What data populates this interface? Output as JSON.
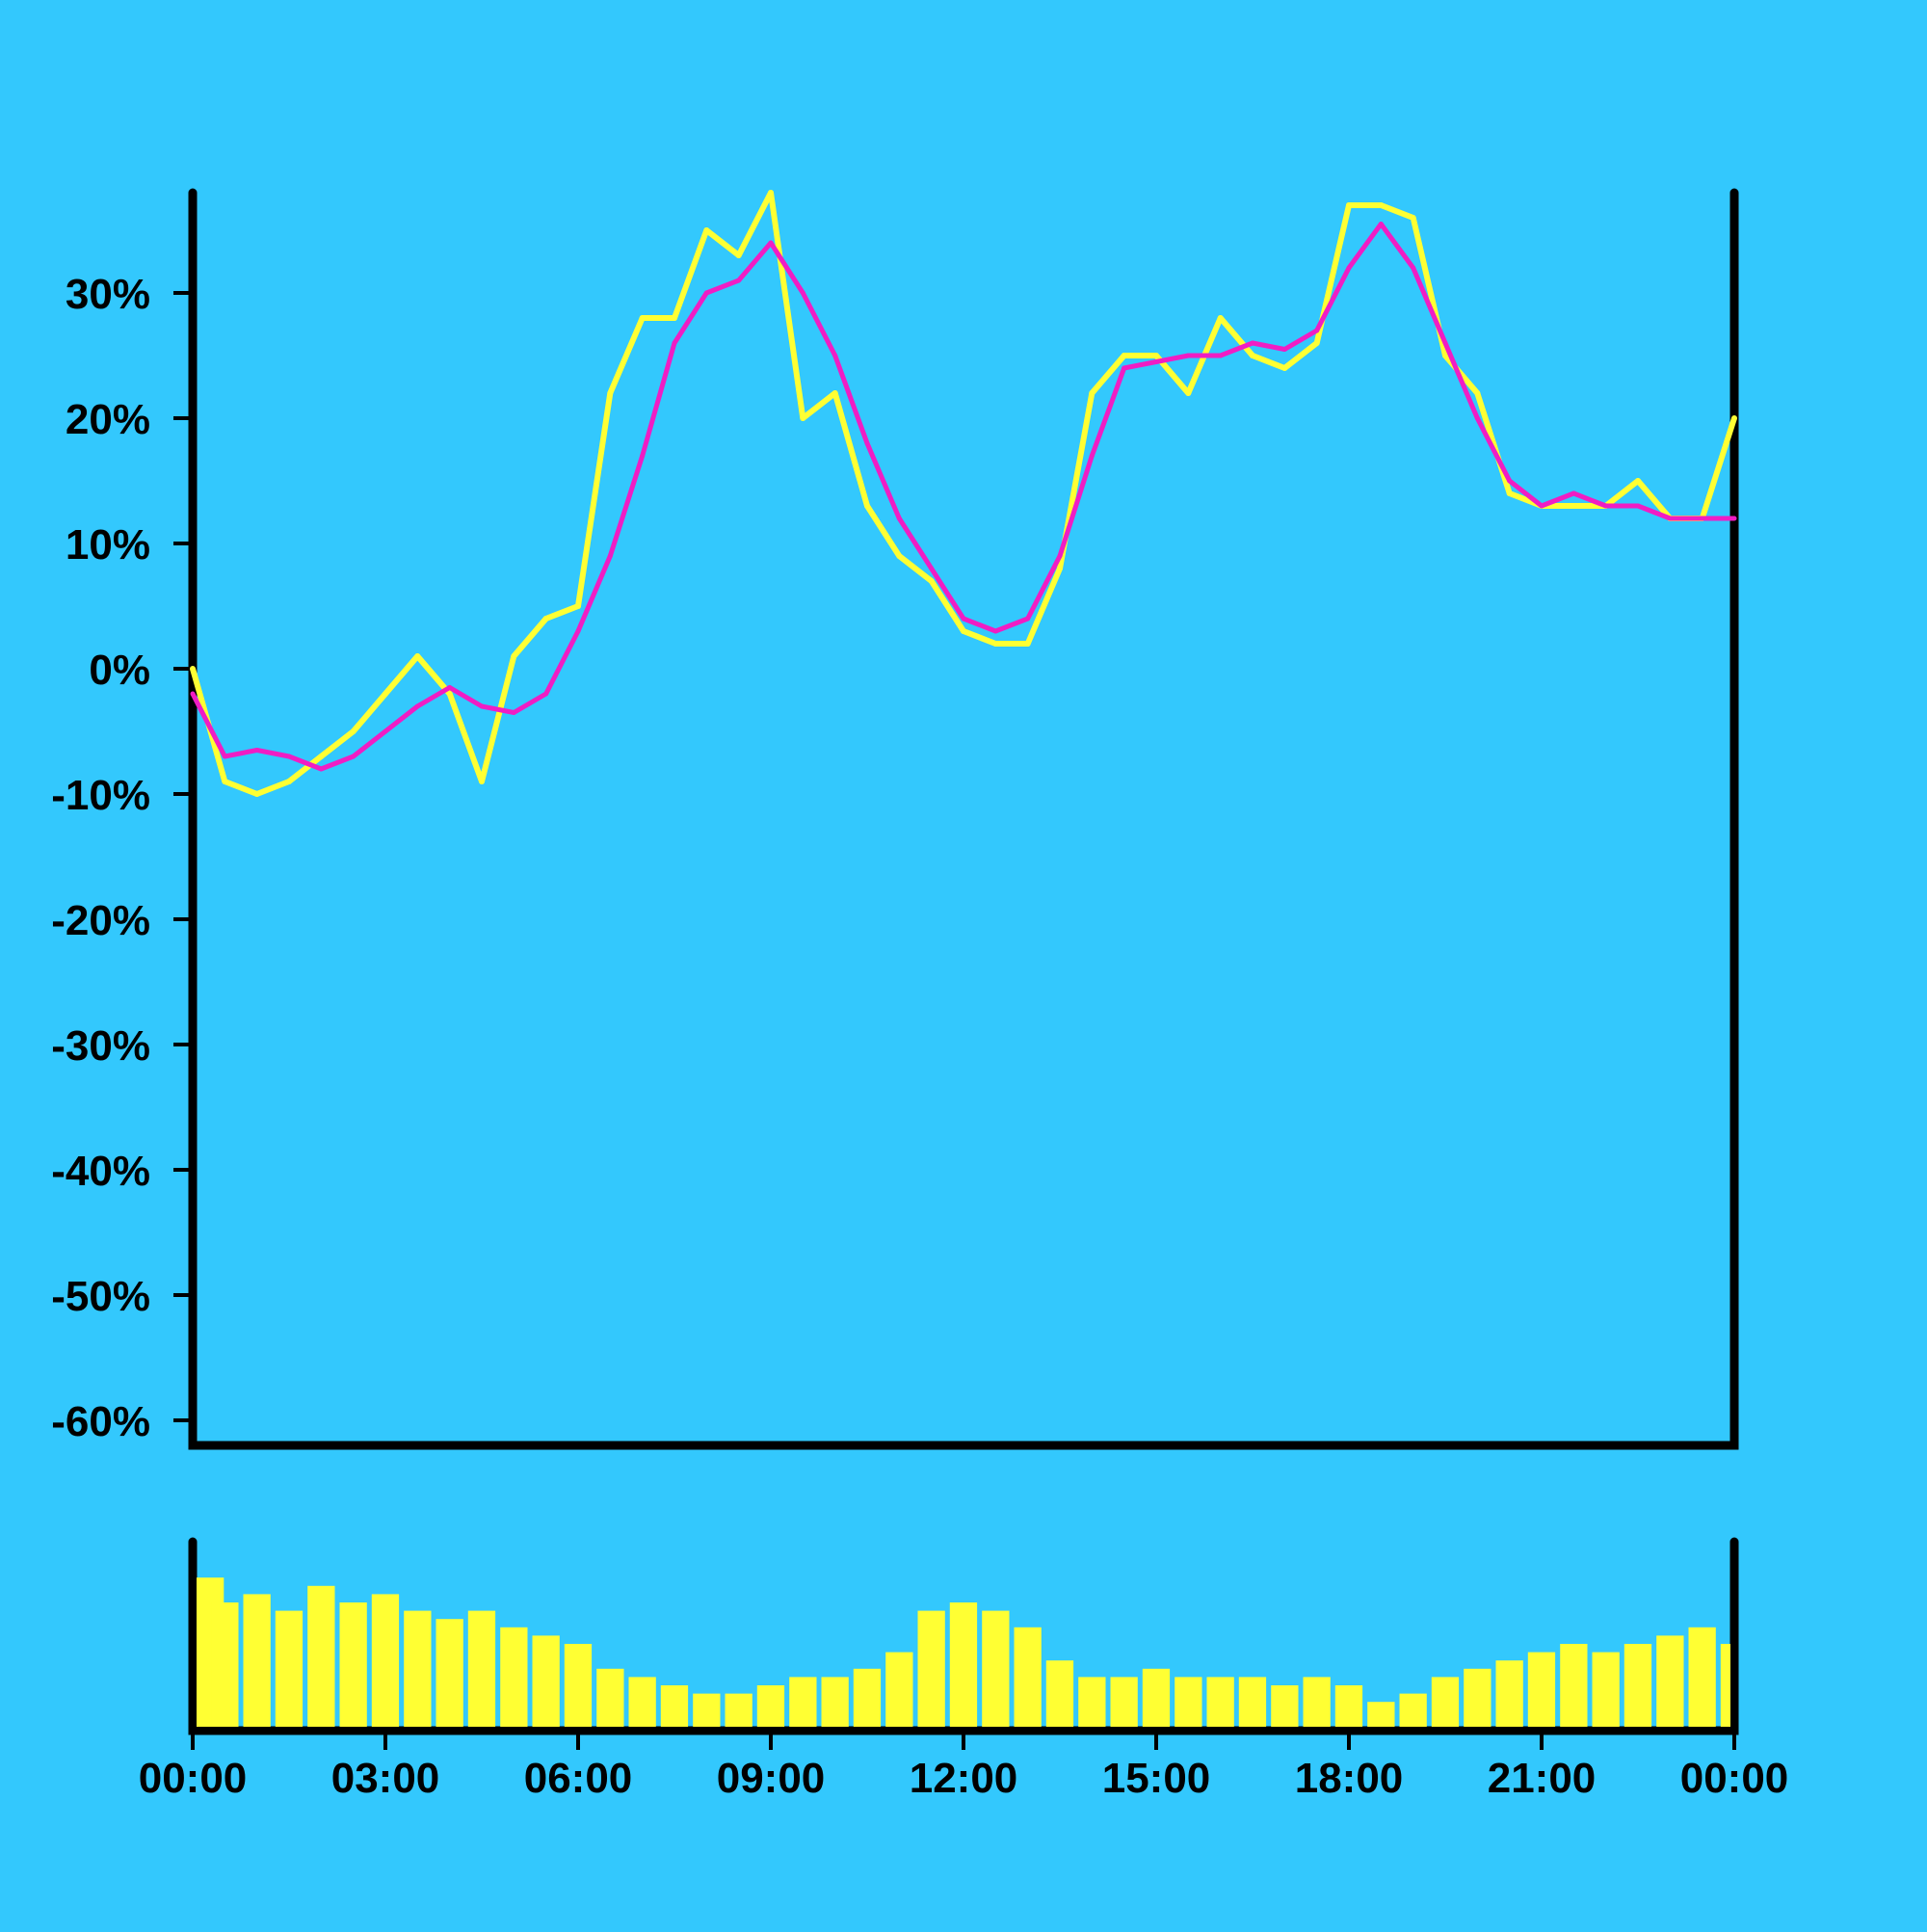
{
  "chart_data": [
    {
      "type": "line",
      "title": "",
      "xlabel": "",
      "ylabel": "",
      "ylim": [
        -62,
        38
      ],
      "yticks": [
        30,
        20,
        10,
        0,
        -10,
        -20,
        -30,
        -40,
        -50,
        -60
      ],
      "ytick_labels": [
        "30%",
        "20%",
        "10%",
        "0%",
        "-10%",
        "-20%",
        "-30%",
        "-40%",
        "-50%",
        "-60%"
      ],
      "x_unit": "hours",
      "xlim": [
        0,
        24
      ],
      "grid": false,
      "legend": "none",
      "series": [
        {
          "role": "price",
          "color": "#ffff33",
          "x": [
            0,
            0.5,
            1,
            1.5,
            2,
            2.5,
            3,
            3.5,
            4,
            4.5,
            5,
            5.5,
            6,
            6.5,
            7,
            7.5,
            8,
            8.5,
            9,
            9.5,
            10,
            10.5,
            11,
            11.5,
            12,
            12.5,
            13,
            13.5,
            14,
            14.5,
            15,
            15.5,
            16,
            16.5,
            17,
            17.5,
            18,
            18.5,
            19,
            19.5,
            20,
            20.5,
            21,
            21.5,
            22,
            22.5,
            23,
            23.5,
            24
          ],
          "y": [
            0,
            -9,
            -10,
            -9,
            -7,
            -5,
            -2,
            1,
            -2,
            -9,
            1,
            4,
            5,
            22,
            28,
            28,
            35,
            33,
            38,
            20,
            22,
            13,
            9,
            7,
            3,
            2,
            2,
            8,
            22,
            25,
            25,
            22,
            28,
            25,
            24,
            26,
            37,
            37,
            36,
            25,
            22,
            14,
            13,
            13,
            13,
            15,
            12,
            12,
            20
          ]
        },
        {
          "role": "moving-average",
          "color": "#f01dc4",
          "x": [
            0,
            0.5,
            1,
            1.5,
            2,
            2.5,
            3,
            3.5,
            4,
            4.5,
            5,
            5.5,
            6,
            6.5,
            7,
            7.5,
            8,
            8.5,
            9,
            9.5,
            10,
            10.5,
            11,
            11.5,
            12,
            12.5,
            13,
            13.5,
            14,
            14.5,
            15,
            15.5,
            16,
            16.5,
            17,
            17.5,
            18,
            18.5,
            19,
            19.5,
            20,
            20.5,
            21,
            21.5,
            22,
            22.5,
            23,
            23.5,
            24
          ],
          "y": [
            -2,
            -7,
            -6.5,
            -7,
            -8,
            -7,
            -5,
            -3,
            -1.5,
            -3,
            -3.5,
            -2,
            3,
            9,
            17,
            26,
            30,
            31,
            34,
            30,
            25,
            18,
            12,
            8,
            4,
            3,
            4,
            9,
            17,
            24,
            24.5,
            25,
            25,
            26,
            25.5,
            27,
            32,
            35.5,
            32,
            26,
            20,
            15,
            13,
            14,
            13,
            13,
            12,
            12,
            12
          ]
        },
        {
          "role": "volume",
          "color": "#ffff33",
          "x": [
            0,
            0.5,
            1,
            1.5,
            2,
            2.5,
            3,
            3.5,
            4,
            4.5,
            5,
            5.5,
            6,
            6.5,
            7,
            7.5,
            8,
            8.5,
            9,
            9.5,
            10,
            10.5,
            11,
            11.5,
            12,
            12.5,
            13,
            13.5,
            14,
            14.5,
            15,
            15.5,
            16,
            16.5,
            17,
            17.5,
            18,
            18.5,
            19,
            19.5,
            20,
            20.5,
            21,
            21.5,
            22,
            22.5,
            23,
            23.5,
            24
          ],
          "values": [
            0.9,
            0.75,
            0.8,
            0.7,
            0.85,
            0.75,
            0.8,
            0.7,
            0.65,
            0.7,
            0.6,
            0.55,
            0.5,
            0.35,
            0.3,
            0.25,
            0.2,
            0.2,
            0.25,
            0.3,
            0.3,
            0.35,
            0.45,
            0.7,
            0.75,
            0.7,
            0.6,
            0.4,
            0.3,
            0.3,
            0.35,
            0.3,
            0.3,
            0.3,
            0.25,
            0.3,
            0.25,
            0.15,
            0.2,
            0.3,
            0.35,
            0.4,
            0.45,
            0.5,
            0.45,
            0.5,
            0.55,
            0.6,
            0.5
          ]
        }
      ],
      "xtick_labels": [
        "00:00",
        "03:00",
        "06:00",
        "09:00",
        "12:00",
        "15:00",
        "18:00",
        "21:00",
        "00:00"
      ]
    }
  ]
}
